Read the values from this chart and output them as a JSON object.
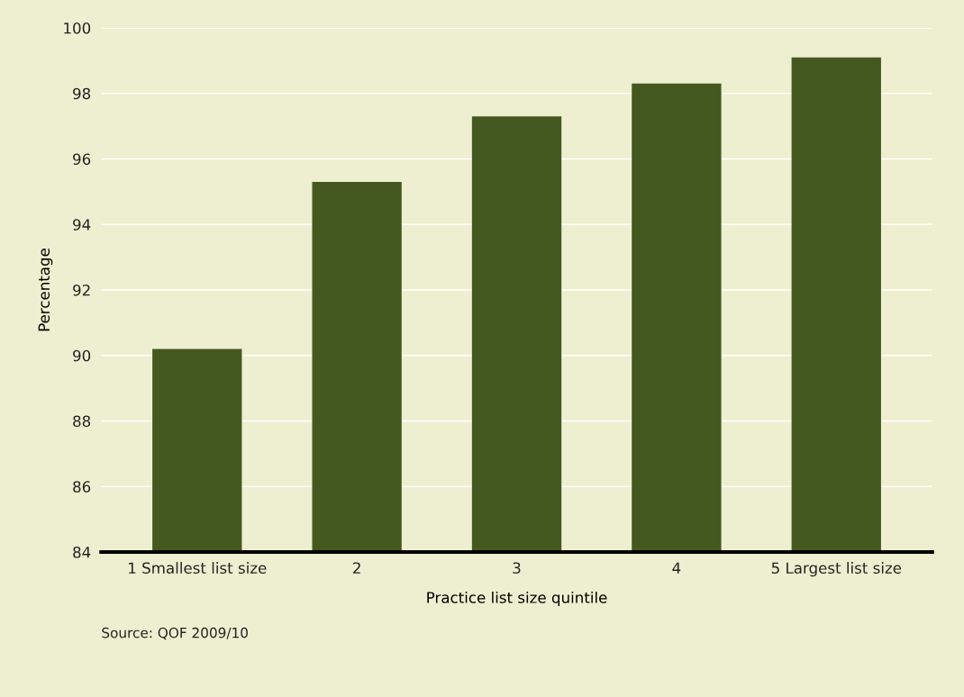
{
  "chart_data": {
    "type": "bar",
    "xlabel": "Practice list size quintile",
    "ylabel": "Percentage",
    "categories": [
      "1 Smallest list size",
      "2",
      "3",
      "4",
      "5 Largest list size"
    ],
    "values": [
      90.2,
      95.3,
      97.3,
      98.3,
      99.1
    ],
    "color": "#445920",
    "ylim": [
      84,
      100
    ],
    "yticks": [
      84,
      86,
      88,
      90,
      92,
      94,
      96,
      98,
      100
    ],
    "grid": "y",
    "legend": false,
    "annotations": [
      "Source: QOF 2009/10"
    ]
  }
}
